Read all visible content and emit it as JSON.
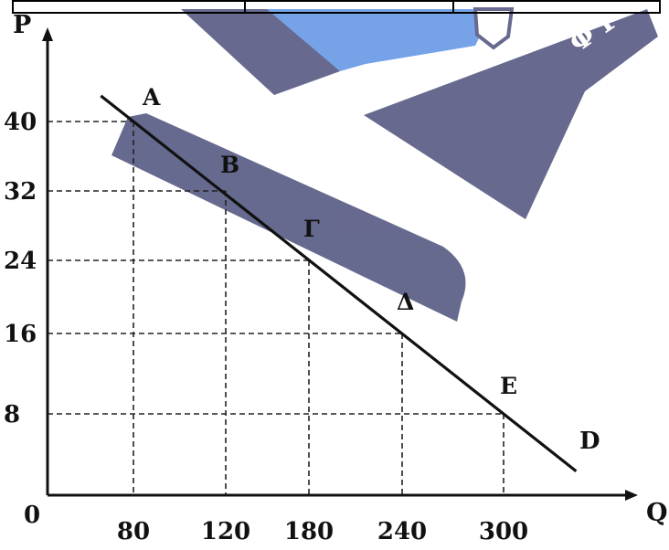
{
  "chart_data": {
    "type": "line",
    "xlabel": "Q",
    "ylabel": "P",
    "origin_label": "0",
    "x_ticks": [
      80,
      120,
      180,
      240,
      300
    ],
    "y_ticks": [
      8,
      16,
      24,
      32,
      40
    ],
    "grid": "dashed guides from each point to the axes",
    "series": [
      {
        "name": "D",
        "points": [
          {
            "label": "A",
            "x": 80,
            "y": 40
          },
          {
            "label": "B",
            "x": 120,
            "y": 32
          },
          {
            "label": "Γ",
            "x": 180,
            "y": 24
          },
          {
            "label": "Δ",
            "x": 240,
            "y": 16
          },
          {
            "label": "E",
            "x": 300,
            "y": 8
          }
        ]
      }
    ]
  },
  "colors": {
    "line": "#111111",
    "guides": "#222222",
    "watermark": "#5f6289",
    "watermark_accent": "#6f9fe6"
  }
}
